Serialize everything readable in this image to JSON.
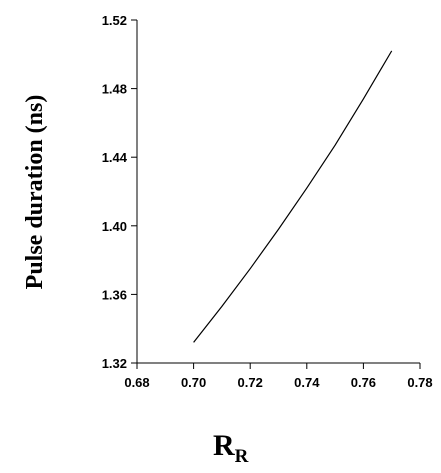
{
  "chart_data": {
    "type": "line",
    "y_label": "Pulse duration (ns)",
    "x_label": "R",
    "x_label_subscript": "R",
    "x": [
      0.7,
      0.71,
      0.72,
      0.73,
      0.74,
      0.75,
      0.76,
      0.77
    ],
    "series": [
      {
        "color": "#000000",
        "values": [
          1.332,
          1.353,
          1.375,
          1.398,
          1.422,
          1.447,
          1.474,
          1.502
        ]
      }
    ],
    "xlim": [
      0.68,
      0.78
    ],
    "xticks": [
      0.68,
      {
        "value": 0.7,
        "label": "0.70"
      },
      0.72,
      0.74,
      0.76,
      0.78
    ],
    "ylim": [
      1.32,
      1.52
    ],
    "yticks": [
      1.32,
      1.36,
      {
        "value": 1.4,
        "label": "1.40"
      },
      1.44,
      1.48,
      1.52
    ]
  }
}
